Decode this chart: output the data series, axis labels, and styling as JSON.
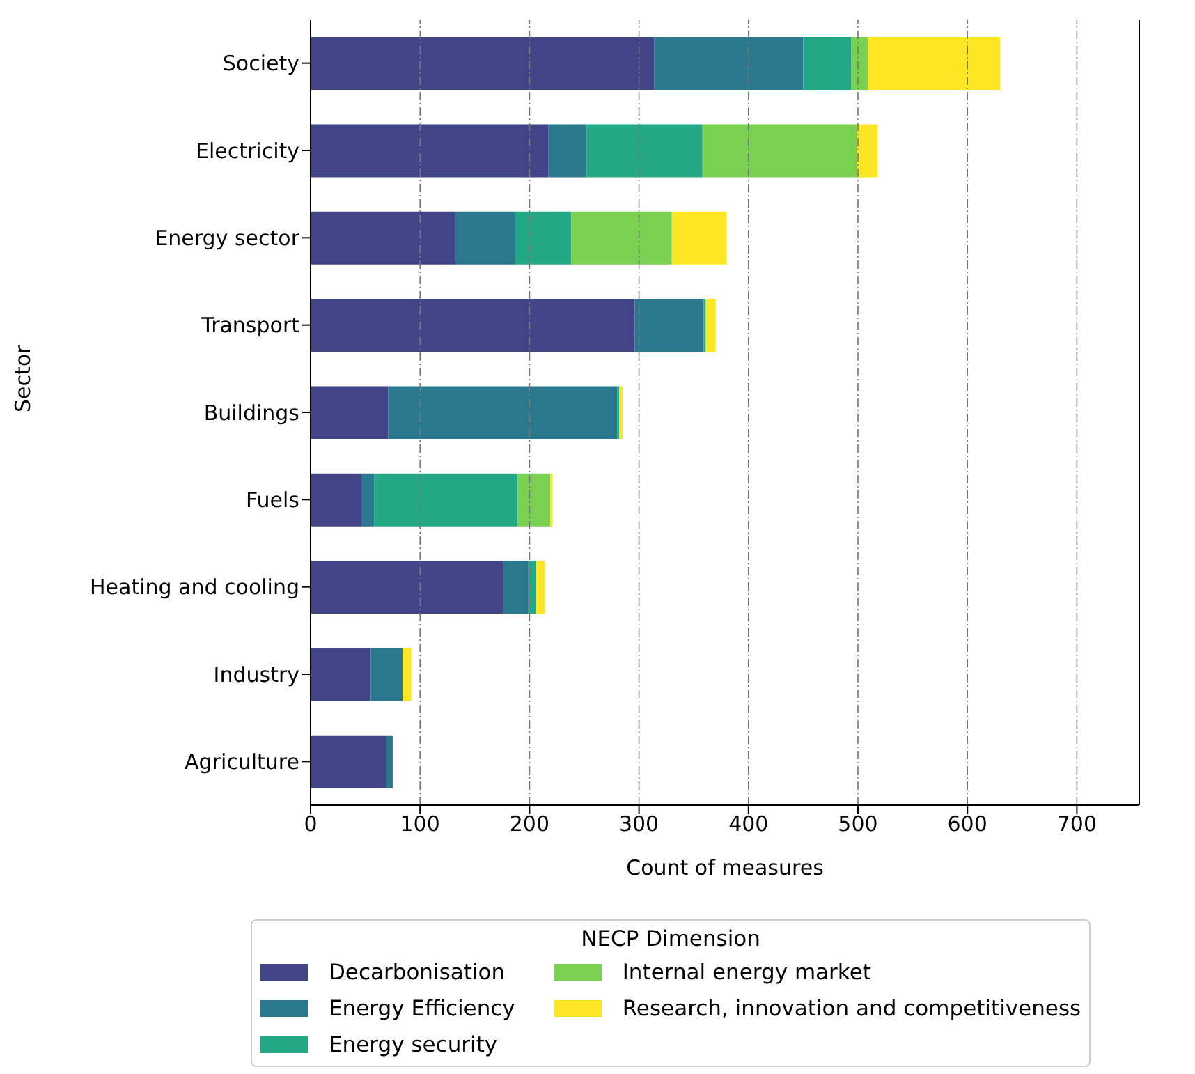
{
  "chart_data": {
    "type": "bar",
    "orientation": "horizontal",
    "stacked": true,
    "xlabel": "Count of measures",
    "ylabel": "Sector",
    "legend_title": "NECP Dimension",
    "legend": "bottom",
    "grid": "x",
    "categories": [
      "Society",
      "Electricity",
      "Energy sector",
      "Transport",
      "Buildings",
      "Fuels",
      "Heating and cooling",
      "Industry",
      "Agriculture"
    ],
    "xlim": [
      0,
      757
    ],
    "xticks": [
      0,
      100,
      200,
      300,
      400,
      500,
      600,
      700
    ],
    "series": [
      {
        "name": "Decarbonisation",
        "color": "#414487",
        "values": [
          314,
          217,
          132,
          296,
          71,
          47,
          176,
          55,
          69
        ]
      },
      {
        "name": "Energy Efficiency",
        "color": "#2a788e",
        "values": [
          136,
          35,
          55,
          63,
          209,
          11,
          23,
          29,
          6
        ]
      },
      {
        "name": "Energy security",
        "color": "#22a884",
        "values": [
          44,
          106,
          51,
          2,
          2,
          131,
          7,
          0,
          0
        ]
      },
      {
        "name": "Internal energy market",
        "color": "#7ad151",
        "values": [
          15,
          141,
          92,
          0,
          0,
          30,
          0,
          0,
          0
        ]
      },
      {
        "name": "Research, innovation and competitiveness",
        "color": "#fde725",
        "values": [
          121,
          19,
          50,
          9,
          3,
          2,
          8,
          8,
          0
        ]
      }
    ]
  }
}
